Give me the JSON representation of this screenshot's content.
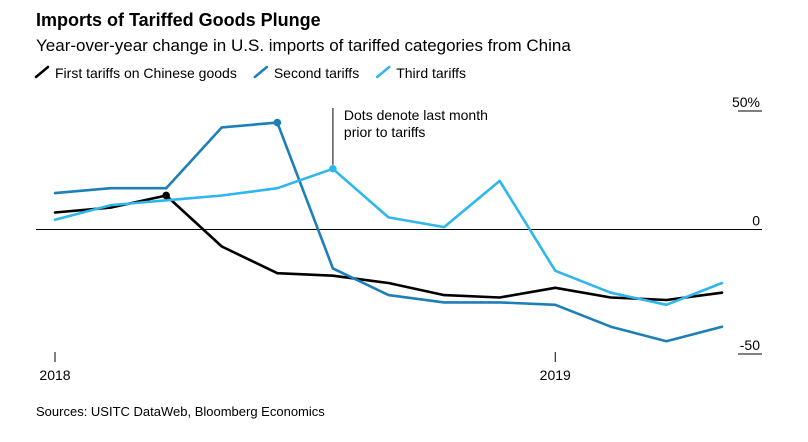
{
  "chart_data": {
    "type": "line",
    "title": "Imports of Tariffed Goods Plunge",
    "subtitle": "Year-over-year change in U.S. imports of tariffed categories from China",
    "legend_position": "top-left",
    "series": [
      {
        "name": "First tariffs on Chinese goods",
        "color": "#000000",
        "x": [
          0,
          1,
          2,
          3,
          4,
          5,
          6,
          7,
          8,
          9,
          10,
          11,
          12
        ],
        "values": [
          7,
          9,
          14,
          -7,
          -18,
          -19,
          -22,
          -27,
          -28,
          -24,
          -28,
          -29,
          -26
        ],
        "marker_index": 2
      },
      {
        "name": "Second tariffs",
        "color": "#1d7fb8",
        "x": [
          0,
          1,
          2,
          3,
          4,
          5,
          6,
          7,
          8,
          9,
          10,
          11,
          12
        ],
        "values": [
          15,
          17,
          17,
          42,
          44,
          -16,
          -27,
          -30,
          -30,
          -31,
          -40,
          -46,
          -40
        ],
        "marker_index": 4
      },
      {
        "name": "Third tariffs",
        "color": "#2eb6ef",
        "x": [
          0,
          1,
          2,
          3,
          4,
          5,
          6,
          7,
          8,
          9,
          10,
          11,
          12
        ],
        "values": [
          4,
          10,
          12,
          14,
          17,
          25,
          5,
          1,
          20,
          -17,
          -26,
          -31,
          -22
        ],
        "marker_index": 5
      }
    ],
    "x_ticks": [
      {
        "x": 0,
        "label": "2018"
      },
      {
        "x": 9,
        "label": "2019"
      }
    ],
    "y_ticks": [
      {
        "value": 50,
        "label": "50%"
      },
      {
        "value": 0,
        "label": "0"
      },
      {
        "value": -50,
        "label": "-50"
      }
    ],
    "ylim": [
      -50,
      50
    ],
    "xlim": [
      0,
      12
    ],
    "zero_line": true,
    "annotation": {
      "lines": [
        "Dots denote last month",
        "prior to tariffs"
      ],
      "target_series": 2,
      "target_index": 5
    },
    "source": "Sources: USITC DataWeb, Bloomberg Economics"
  }
}
